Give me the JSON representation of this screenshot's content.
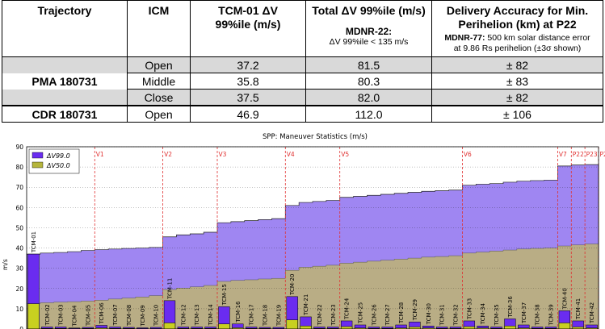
{
  "table": {
    "headers": {
      "trajectory": "Trajectory",
      "icm": "ICM",
      "tcm_line1": "TCM-01 ΔV",
      "tcm_line2": "99%ile (m/s)",
      "total_title": "Total ΔV 99%ile (m/s)",
      "total_sub_bold": "MDNR-22:",
      "total_sub_text": "ΔV 99%ile < 135 m/s",
      "delivery_line1": "Delivery Accuracy for Min.",
      "delivery_line2": "Perihelion (km) at P22",
      "delivery_sub_bold": "MDNR-77:",
      "delivery_sub_text1": " 500 km solar distance error",
      "delivery_sub_text2": "at 9.86 Rs perihelion (±3σ shown)"
    },
    "rows": [
      {
        "trajectory": "",
        "icm": "Open",
        "tcm": "37.2",
        "total": "81.5",
        "delivery": "± 82"
      },
      {
        "trajectory": "PMA 180731",
        "icm": "Middle",
        "tcm": "35.8",
        "total": "80.3",
        "delivery": "± 83"
      },
      {
        "trajectory": "",
        "icm": "Close",
        "tcm": "37.5",
        "total": "82.0",
        "delivery": "± 82"
      },
      {
        "trajectory": "CDR 180731",
        "icm": "Open",
        "tcm": "46.9",
        "total": "112.0",
        "delivery": "± 106"
      }
    ]
  },
  "chart_data": {
    "type": "bar",
    "title": "SPP: Maneuver Statistics  (m/s)",
    "ylabel": "m/s",
    "ylim": [
      0,
      90
    ],
    "yticks": [
      0,
      10,
      20,
      30,
      40,
      50,
      60,
      70,
      80,
      90
    ],
    "grid": true,
    "legend_position": "top-left",
    "colors": {
      "dv99": "#6a2cf0",
      "dv50": "#b5b53c",
      "cum99": "#9f86f2",
      "cum50": "#b9ad85",
      "venus": "#e03030"
    },
    "series": [
      {
        "name": "ΔV99.0",
        "key": "dv99"
      },
      {
        "name": "ΔV50.0",
        "key": "dv50"
      }
    ],
    "maneuvers": [
      {
        "label": "TCM-01",
        "dv99": 37.0,
        "dv50": 12.5,
        "cum99": 37.0,
        "cum50": 12.5
      },
      {
        "label": "TCM-02",
        "dv99": 1.0,
        "dv50": 0.3,
        "cum99": 37.5,
        "cum50": 13.0
      },
      {
        "label": "TCM-03",
        "dv99": 1.0,
        "dv50": 0.3,
        "cum99": 37.8,
        "cum50": 13.3
      },
      {
        "label": "TCM-04",
        "dv99": 0.5,
        "dv50": 0.2,
        "cum99": 38.2,
        "cum50": 13.5
      },
      {
        "label": "TCM-05",
        "dv99": 0.8,
        "dv50": 0.3,
        "cum99": 38.8,
        "cum50": 13.8
      },
      {
        "label": "TCM-06",
        "dv99": 1.8,
        "dv50": 0.5,
        "cum99": 39.2,
        "cum50": 14.2
      },
      {
        "label": "TCM-07",
        "dv99": 1.0,
        "dv50": 0.3,
        "cum99": 39.5,
        "cum50": 14.8
      },
      {
        "label": "TCM-08",
        "dv99": 0.8,
        "dv50": 0.3,
        "cum99": 39.8,
        "cum50": 15.3
      },
      {
        "label": "TCM-09",
        "dv99": 0.6,
        "dv50": 0.2,
        "cum99": 40.0,
        "cum50": 15.8
      },
      {
        "label": "TCM-10",
        "dv99": 0.8,
        "dv50": 0.2,
        "cum99": 40.3,
        "cum50": 16.5
      },
      {
        "label": "TCM-11",
        "dv99": 14.0,
        "dv50": 3.0,
        "cum99": 45.5,
        "cum50": 19.5
      },
      {
        "label": "TCM-12",
        "dv99": 1.0,
        "dv50": 0.3,
        "cum99": 46.5,
        "cum50": 20.2
      },
      {
        "label": "TCM-13",
        "dv99": 1.0,
        "dv50": 0.3,
        "cum99": 47.0,
        "cum50": 20.8
      },
      {
        "label": "TCM-14",
        "dv99": 1.0,
        "dv50": 0.3,
        "cum99": 47.8,
        "cum50": 21.5
      },
      {
        "label": "TCM-15",
        "dv99": 11.0,
        "dv50": 2.5,
        "cum99": 52.5,
        "cum50": 23.5
      },
      {
        "label": "TCM-16",
        "dv99": 2.5,
        "dv50": 0.6,
        "cum99": 53.0,
        "cum50": 24.0
      },
      {
        "label": "TCM-17",
        "dv99": 1.0,
        "dv50": 0.3,
        "cum99": 53.5,
        "cum50": 24.3
      },
      {
        "label": "TCM-18",
        "dv99": 0.8,
        "dv50": 0.3,
        "cum99": 54.0,
        "cum50": 24.7
      },
      {
        "label": "TCM-19",
        "dv99": 0.8,
        "dv50": 0.2,
        "cum99": 54.5,
        "cum50": 25.0
      },
      {
        "label": "TCM-20",
        "dv99": 16.0,
        "dv50": 4.5,
        "cum99": 61.0,
        "cum50": 29.0
      },
      {
        "label": "TCM-21",
        "dv99": 6.0,
        "dv50": 1.5,
        "cum99": 62.5,
        "cum50": 30.5
      },
      {
        "label": "TCM-22",
        "dv99": 1.0,
        "dv50": 0.3,
        "cum99": 63.0,
        "cum50": 31.0
      },
      {
        "label": "TCM-23",
        "dv99": 1.0,
        "dv50": 0.3,
        "cum99": 63.5,
        "cum50": 31.5
      },
      {
        "label": "TCM-24",
        "dv99": 4.0,
        "dv50": 1.2,
        "cum99": 65.0,
        "cum50": 32.5
      },
      {
        "label": "TCM-25",
        "dv99": 2.0,
        "dv50": 0.5,
        "cum99": 65.5,
        "cum50": 33.0
      },
      {
        "label": "TCM-26",
        "dv99": 1.0,
        "dv50": 0.3,
        "cum99": 66.0,
        "cum50": 33.5
      },
      {
        "label": "TCM-27",
        "dv99": 1.0,
        "dv50": 0.3,
        "cum99": 66.5,
        "cum50": 34.0
      },
      {
        "label": "TCM-28",
        "dv99": 2.0,
        "dv50": 0.5,
        "cum99": 67.0,
        "cum50": 34.5
      },
      {
        "label": "TCM-29",
        "dv99": 3.5,
        "dv50": 1.0,
        "cum99": 67.5,
        "cum50": 35.0
      },
      {
        "label": "TCM-30",
        "dv99": 1.5,
        "dv50": 0.5,
        "cum99": 68.0,
        "cum50": 35.5
      },
      {
        "label": "TCM-31",
        "dv99": 1.0,
        "dv50": 0.3,
        "cum99": 68.3,
        "cum50": 35.8
      },
      {
        "label": "TCM-32",
        "dv99": 1.0,
        "dv50": 0.3,
        "cum99": 68.6,
        "cum50": 36.2
      },
      {
        "label": "TCM-33",
        "dv99": 4.0,
        "dv50": 1.2,
        "cum99": 71.0,
        "cum50": 37.5
      },
      {
        "label": "TCM-34",
        "dv99": 1.5,
        "dv50": 0.5,
        "cum99": 71.5,
        "cum50": 38.0
      },
      {
        "label": "TCM-35",
        "dv99": 1.0,
        "dv50": 0.3,
        "cum99": 71.8,
        "cum50": 38.5
      },
      {
        "label": "TCM-36",
        "dv99": 5.0,
        "dv50": 1.5,
        "cum99": 72.5,
        "cum50": 39.0
      },
      {
        "label": "TCM-37",
        "dv99": 2.0,
        "dv50": 0.5,
        "cum99": 73.0,
        "cum50": 39.5
      },
      {
        "label": "TCM-38",
        "dv99": 1.0,
        "dv50": 0.3,
        "cum99": 73.3,
        "cum50": 39.8
      },
      {
        "label": "TCM-39",
        "dv99": 1.0,
        "dv50": 0.3,
        "cum99": 73.5,
        "cum50": 40.0
      },
      {
        "label": "TCM-40",
        "dv99": 9.0,
        "dv50": 3.0,
        "cum99": 80.5,
        "cum50": 41.0
      },
      {
        "label": "TCM-41",
        "dv99": 4.0,
        "dv50": 1.0,
        "cum99": 81.0,
        "cum50": 41.5
      },
      {
        "label": "TCM-42",
        "dv99": 2.0,
        "dv50": 0.5,
        "cum99": 81.2,
        "cum50": 42.0
      }
    ],
    "venus_markers": [
      {
        "label": "V1",
        "after": 5
      },
      {
        "label": "V2",
        "after": 10
      },
      {
        "label": "V3",
        "after": 14
      },
      {
        "label": "V4",
        "after": 19
      },
      {
        "label": "V5",
        "after": 23
      },
      {
        "label": "V6",
        "after": 32
      },
      {
        "label": "V7",
        "after": 39
      },
      {
        "label": "P22",
        "after": 40
      },
      {
        "label": "P23",
        "after": 41
      },
      {
        "label": "P24",
        "after": 42
      }
    ]
  }
}
